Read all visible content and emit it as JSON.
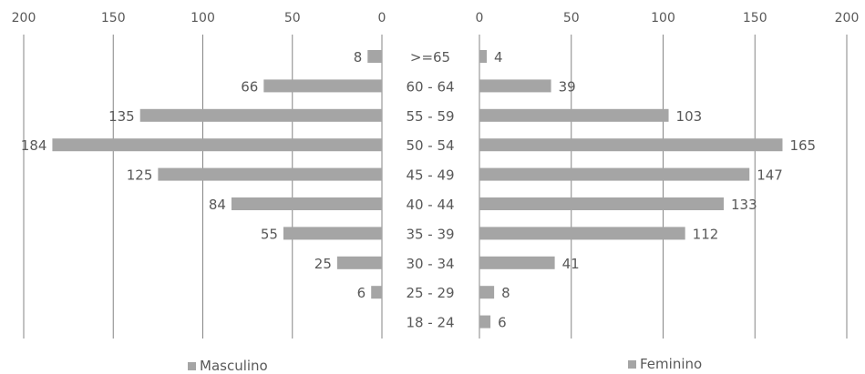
{
  "chart_data": {
    "type": "bar",
    "orientation": "horizontal",
    "layout": "population-pyramid",
    "categories": [
      ">=65",
      "60 - 64",
      "55 - 59",
      "50 - 54",
      "45 - 49",
      "40 - 44",
      "35 - 39",
      "30 - 34",
      "25 - 29",
      "18 - 24"
    ],
    "series": [
      {
        "name": "Masculino",
        "values": [
          8,
          66,
          135,
          184,
          125,
          84,
          55,
          25,
          6,
          null
        ],
        "color": "#a5a5a5"
      },
      {
        "name": "Feminino",
        "values": [
          4,
          39,
          103,
          165,
          147,
          133,
          112,
          41,
          8,
          6
        ],
        "color": "#a5a5a5"
      }
    ],
    "xlim": [
      0,
      200
    ],
    "left_ticks": [
      "200",
      "150",
      "100",
      "50",
      "0"
    ],
    "right_ticks": [
      "0",
      "50",
      "100",
      "150",
      "200"
    ],
    "grid": "vertical",
    "gridline_color": "#868686",
    "legend": [
      "bottom-left",
      "bottom-right"
    ],
    "title": "",
    "xlabel": "",
    "ylabel": ""
  }
}
